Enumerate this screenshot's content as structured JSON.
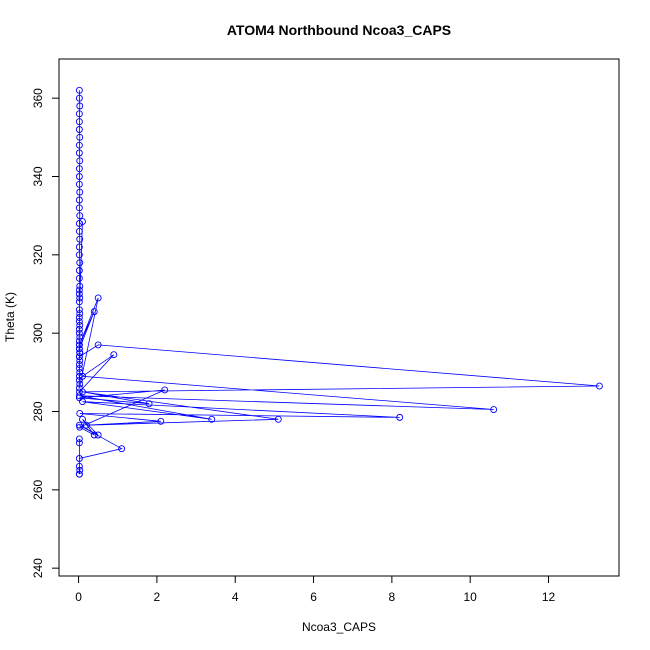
{
  "chart_data": {
    "type": "line",
    "title": "ATOM4 Northbound Ncoa3_CAPS",
    "xlabel": "Ncoa3_CAPS",
    "ylabel": "Theta (K)",
    "xlim": [
      -0.5,
      13.8
    ],
    "ylim": [
      238,
      370
    ],
    "xticks": [
      "0",
      "2",
      "4",
      "6",
      "8",
      "10",
      "12"
    ],
    "yticks": [
      "240",
      "260",
      "280",
      "300",
      "320",
      "340",
      "360"
    ],
    "grid": false,
    "legend": "none",
    "line_color": "#0000ff",
    "marker": "open-circle",
    "series": [
      {
        "x": [
          0.02,
          0.02,
          0.03,
          0.02,
          0.02,
          0.02,
          0.03,
          0.02,
          0.02,
          0.03,
          0.02,
          0.02,
          0.02,
          0.03,
          0.02,
          0.02,
          0.03,
          0.02,
          0.02,
          0.03,
          0.02,
          0.02,
          0.03,
          0.02,
          0.02,
          0.03,
          0.02,
          0.02,
          0.03,
          0.02,
          0.1,
          0.02,
          0.03,
          0.02,
          0.02,
          0.03,
          0.02,
          0.02,
          0.03,
          0.02,
          0.02,
          0.02,
          0.03,
          0.02,
          0.03,
          0.02,
          0.02,
          0.03,
          0.02,
          0.02,
          0.03,
          0.02,
          0.5,
          0.02,
          0.4,
          0.02,
          0.03,
          0.02,
          0.5,
          13.3,
          0.02,
          0.9,
          0.1,
          10.6,
          0.02,
          3.4,
          0.1,
          8.2,
          0.03,
          2.1,
          0.2,
          5.1,
          0.1,
          1.8,
          0.02,
          2.2,
          0.03,
          0.4,
          0.1,
          0.5,
          0.02,
          1.1,
          0.02,
          0.02,
          0.03,
          0.02,
          0.02,
          0.02,
          0.02
        ],
        "y": [
          362,
          360,
          358,
          356,
          354,
          352,
          350,
          348,
          346,
          344,
          342,
          340,
          338,
          336,
          334,
          332,
          330,
          328,
          326,
          324,
          322,
          320,
          318,
          316,
          314,
          312,
          311,
          310,
          309,
          308,
          328.5,
          306,
          305,
          304,
          303,
          302,
          301,
          300,
          299,
          298,
          297,
          296,
          295,
          294,
          293,
          292,
          291,
          290,
          289,
          288,
          287,
          286,
          309,
          297,
          305.5,
          296,
          295,
          294,
          297,
          286.5,
          285,
          294.5,
          289,
          280.5,
          284,
          278,
          282.5,
          278.5,
          279.5,
          277.5,
          276.5,
          278,
          285,
          282,
          283.5,
          285.5,
          276,
          274,
          278,
          274,
          276.5,
          270.5,
          268,
          266,
          265,
          264,
          273,
          272,
          264
        ]
      }
    ]
  }
}
